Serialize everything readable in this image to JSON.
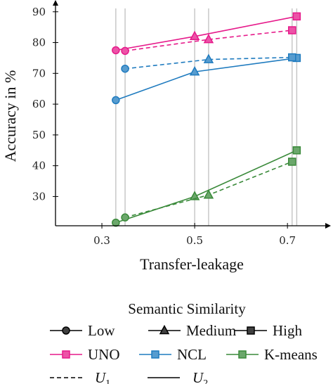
{
  "chart_data": {
    "type": "line",
    "xlabel": "Transfer-leakage",
    "ylabel": "Accuracy in %",
    "x_ticks": [
      "0.3",
      "0.5",
      "0.7"
    ],
    "y_ticks": [
      "30",
      "40",
      "50",
      "60",
      "70",
      "80",
      "90"
    ],
    "xlim": [
      0.2,
      0.78
    ],
    "ylim": [
      20.5,
      92
    ],
    "reference_lines_x": [
      0.33,
      0.35,
      0.5,
      0.53,
      0.71,
      0.72
    ],
    "series": [
      {
        "name": "UNO",
        "color": "#e6198a",
        "metric": "U2",
        "points": [
          [
            0.33,
            77.5
          ],
          [
            0.5,
            82
          ],
          [
            0.72,
            88.5
          ]
        ]
      },
      {
        "name": "UNO",
        "color": "#e6198a",
        "metric": "U1",
        "points": [
          [
            0.35,
            77.3
          ],
          [
            0.53,
            81
          ],
          [
            0.71,
            84
          ]
        ]
      },
      {
        "name": "NCL",
        "color": "#1f7bbf",
        "metric": "U2",
        "points": [
          [
            0.33,
            61.3
          ],
          [
            0.5,
            70.5
          ],
          [
            0.72,
            75
          ]
        ]
      },
      {
        "name": "NCL",
        "color": "#1f7bbf",
        "metric": "U1",
        "points": [
          [
            0.35,
            71.5
          ],
          [
            0.53,
            74.5
          ],
          [
            0.71,
            75.2
          ]
        ]
      },
      {
        "name": "K-means",
        "color": "#3a8a3a",
        "metric": "U2",
        "points": [
          [
            0.33,
            21.5
          ],
          [
            0.5,
            30
          ],
          [
            0.72,
            45
          ]
        ]
      },
      {
        "name": "K-means",
        "color": "#3a8a3a",
        "metric": "U1",
        "points": [
          [
            0.35,
            23.2
          ],
          [
            0.53,
            30.5
          ],
          [
            0.71,
            41.3
          ]
        ]
      }
    ],
    "marker_by_similarity": {
      "Low": "circle",
      "Medium": "triangle",
      "High": "square"
    },
    "legend": {
      "title": "Semantic Similarity",
      "similarity": [
        "Low",
        "Medium",
        "High"
      ],
      "methods": [
        "UNO",
        "NCL",
        "K-means"
      ],
      "metrics": [
        {
          "style": "dashed",
          "label": "U",
          "sub": "1"
        },
        {
          "style": "solid",
          "label": "U",
          "sub": "2"
        }
      ]
    }
  }
}
